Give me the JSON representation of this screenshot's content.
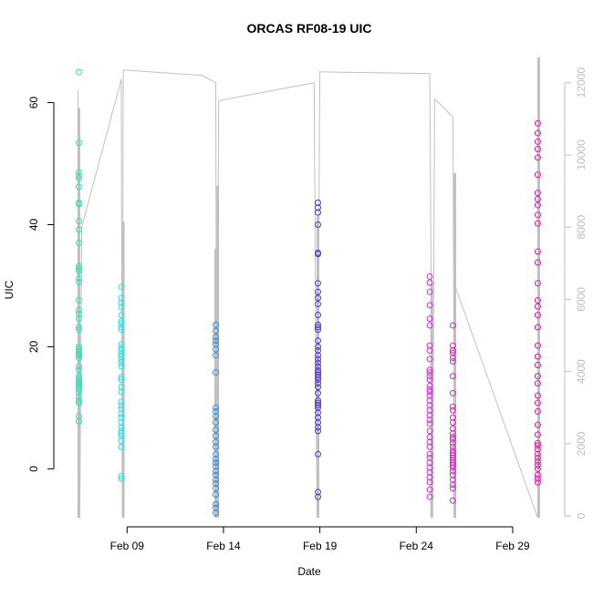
{
  "chart_data": {
    "type": "scatter",
    "title": "ORCAS RF08-19 UIC",
    "xlabel": "Date",
    "ylabel": "UIC",
    "x_ticks": [
      "Feb 09",
      "Feb 14",
      "Feb 19",
      "Feb 24",
      "Feb 29"
    ],
    "y_ticks": [
      "0",
      "20",
      "40",
      "60"
    ],
    "y2_ticks": [
      "0",
      "2000",
      "4000",
      "6000",
      "8000",
      "10000",
      "12000"
    ],
    "xlim_days": [
      5.2,
      31.7
    ],
    "ylim": [
      -9.5,
      68
    ],
    "y2lim": [
      -300,
      12800
    ],
    "axis_box": "open",
    "grid": false,
    "legend": "none",
    "colors": {
      "flight_RF08": "#22e6b8",
      "flight_RF09": "#22e6e6",
      "flight_RF10": "#2c8ce6",
      "flight_RF11": "#5530e6",
      "flight_RF12": "#d230e0",
      "flight_RF13": "#e020c8",
      "flight_RF14": "#e01aa8",
      "altitude_trace": "#c0c0c0"
    },
    "series": [
      {
        "date": "Feb 06",
        "day": 6.5,
        "color_key": "flight_RF08",
        "values": [
          65,
          53.4,
          48.6,
          48,
          47.6,
          46.2,
          43.6,
          43.4,
          40.6,
          39.2,
          37,
          33.2,
          32.8,
          32.4,
          31.2,
          30.6,
          27.6,
          26,
          25.4,
          24.6,
          23.2,
          22.8,
          20,
          19.6,
          19.2,
          18.8,
          18.6,
          18.2,
          16.8,
          16.2,
          15.2,
          14.8,
          14.4,
          14.1,
          13.8,
          13.4,
          13,
          12.5,
          11.8,
          11.2,
          10.8,
          8.6,
          7.8
        ]
      },
      {
        "date": "Feb 08",
        "day": 8.7,
        "color_key": "flight_RF09",
        "values": [
          29.8,
          28,
          27.2,
          26.5,
          25.2,
          24.2,
          23.8,
          23.2,
          22.8,
          20.4,
          19.8,
          19.4,
          18.8,
          18.4,
          17.9,
          17.4,
          16.8,
          15,
          14.6,
          13.4,
          12.6,
          11,
          10.4,
          9.8,
          9,
          8.4,
          7.6,
          6.8,
          6.2,
          5.8,
          5.4,
          4.6,
          3.6,
          -1.2,
          -1.6
        ]
      },
      {
        "date": "Feb 13",
        "day": 13.6,
        "color_key": "flight_RF10",
        "values": [
          23.6,
          22.6,
          21.6,
          21,
          20.4,
          19.6,
          18.6,
          15.8,
          10,
          9.4,
          8.6,
          7.6,
          6.4,
          5.4,
          4.4,
          3.6,
          2.4,
          1.6,
          1,
          0.4,
          -0.4,
          -1,
          -1.8,
          -2.4,
          -3.2,
          -4.2,
          -5.8,
          -6.4,
          -7.2
        ]
      },
      {
        "date": "Feb 18",
        "day": 18.9,
        "color_key": "flight_RF11",
        "values": [
          43.6,
          42.8,
          42,
          40,
          35.4,
          35.2,
          30.4,
          29,
          28,
          27,
          25.2,
          23.6,
          23.2,
          22.8,
          21,
          20,
          19.4,
          18.6,
          18,
          17.4,
          16.8,
          16.2,
          15.8,
          15.4,
          15,
          14.6,
          14,
          13.4,
          12.4,
          11.2,
          10.8,
          10.4,
          10,
          9.2,
          8.4,
          7.6,
          6.8,
          6.2,
          2.4,
          -3.8,
          -4.6
        ]
      },
      {
        "date": "Feb 24",
        "day": 24.7,
        "color_key": "flight_RF12",
        "values": [
          31.5,
          30.5,
          29,
          26.8,
          24.6,
          23.5,
          20.2,
          19.4,
          18,
          16.2,
          15.8,
          15.2,
          14.6,
          13.6,
          13,
          12.6,
          12,
          11.2,
          10.4,
          9.6,
          8.8,
          8,
          7.4,
          6.2,
          5.2,
          4.4,
          3.6,
          2.4,
          1.8,
          1,
          0.2,
          -0.6,
          -1.4,
          -2.2,
          -3.4,
          -4.6
        ]
      },
      {
        "date": "Feb 25",
        "day": 25.9,
        "color_key": "flight_RF13",
        "values": [
          23.5,
          20.2,
          19.4,
          19,
          18.2,
          17.6,
          15.2,
          12.4,
          10.2,
          9.6,
          8.4,
          7.6,
          6.6,
          5.8,
          5.2,
          4.8,
          4.2,
          3.6,
          3,
          2.6,
          2.2,
          1.8,
          1.4,
          1,
          0.6,
          0.2,
          -0.4,
          -1,
          -1.8,
          -2.6,
          -3.2,
          -5.2
        ]
      },
      {
        "date": "Feb 29",
        "day": 30.3,
        "color_key": "flight_RF14",
        "values": [
          56.6,
          55,
          53.6,
          52.4,
          51,
          48.2,
          45.2,
          44.2,
          43.2,
          41.6,
          40.2,
          35.6,
          33.8,
          30.4,
          27.6,
          26.6,
          25.2,
          23.2,
          20.2,
          18.4,
          17,
          15.2,
          14,
          12,
          10.8,
          9.4,
          7.2,
          5.6,
          4.2,
          3.8,
          3.2,
          2.4,
          1.8,
          1.2,
          0.6,
          0,
          -1,
          -1.6,
          -2.2
        ]
      }
    ],
    "altitude_trace": {
      "axis": "right",
      "segments": [
        {
          "points": [
            [
              6.45,
              -50
            ],
            [
              6.45,
              11800
            ],
            [
              6.55,
              200
            ],
            [
              6.65,
              8000
            ],
            [
              8.7,
              12100
            ],
            [
              8.75,
              -50
            ],
            [
              8.8,
              12350
            ],
            [
              12.9,
              12200
            ],
            [
              13.6,
              12000
            ],
            [
              13.65,
              -50
            ],
            [
              13.75,
              11500
            ],
            [
              18.7,
              12000
            ],
            [
              18.85,
              -50
            ],
            [
              19.0,
              12300
            ],
            [
              24.7,
              12250
            ],
            [
              24.85,
              -50
            ],
            [
              24.95,
              11550
            ],
            [
              25.9,
              11050
            ],
            [
              26.0,
              -50
            ]
          ]
        },
        {
          "points": [
            [
              26.0,
              6400
            ],
            [
              30.3,
              -50
            ],
            [
              30.4,
              12700
            ]
          ]
        }
      ],
      "spikes": [
        {
          "day": 6.5,
          "min": -50,
          "max": 11300
        },
        {
          "day": 8.8,
          "min": -50,
          "max": 8150
        },
        {
          "day": 13.6,
          "min": -50,
          "max": 7400
        },
        {
          "day": 13.7,
          "min": -50,
          "max": 9150
        },
        {
          "day": 18.9,
          "min": -50,
          "max": 8300
        },
        {
          "day": 24.8,
          "min": -50,
          "max": 6450
        },
        {
          "day": 26.0,
          "min": -50,
          "max": 9500
        },
        {
          "day": 30.35,
          "min": -50,
          "max": 12700
        }
      ]
    }
  }
}
